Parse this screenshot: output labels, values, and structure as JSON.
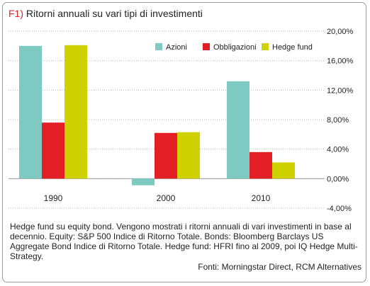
{
  "figure": {
    "tag": "F1)",
    "title": "Ritorni annuali su vari tipi di investimenti",
    "caption": "Hedge fund su equity bond. Vengono mostrati i ritorni annuali di vari investimenti in base al decennio. Equity: S&P 500 Indice di Ritorno Totale. Bonds: Bloomberg Barclays US Aggregate Bond Indice di Ritorno Totale. Hedge fund: HFRI fino al 2009, poi IQ Hedge Multi-Strategy.",
    "source": "Fonti: Morningstar Direct, RCM Alternatives"
  },
  "colors": {
    "azioni": "#7ecac3",
    "obbligazioni": "#e31e24",
    "hedge_fund": "#cfd200",
    "grid": "#bbbbbb",
    "tag": "#d8232a"
  },
  "chart_data": {
    "type": "bar",
    "categories": [
      "1990",
      "2000",
      "2010"
    ],
    "series": [
      {
        "name": "Azioni",
        "values": [
          18.0,
          -0.9,
          13.2
        ]
      },
      {
        "name": "Obbligazioni",
        "values": [
          7.6,
          6.2,
          3.6
        ]
      },
      {
        "name": "Hedge fund",
        "values": [
          18.1,
          6.3,
          2.2
        ]
      }
    ],
    "yticks": [
      "20,00%",
      "16,00%",
      "12,00%",
      "8,00%",
      "4,00%",
      "0,00%",
      "-4,00%"
    ],
    "ytick_values": [
      20,
      16,
      12,
      8,
      4,
      0,
      -4
    ],
    "ylim": [
      -4,
      20
    ],
    "y_axis_side": "right",
    "legend_position": "top-right",
    "grid": true,
    "xlabel": "",
    "ylabel": ""
  }
}
